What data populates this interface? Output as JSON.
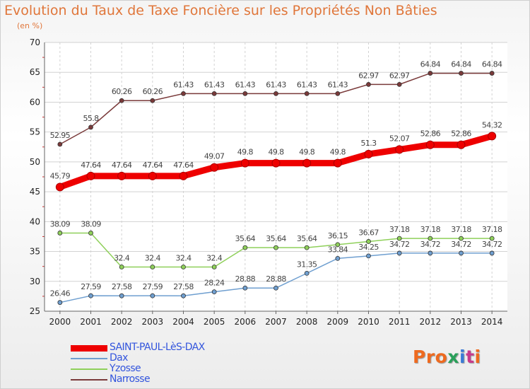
{
  "title": "Evolution du Taux de Taxe Foncière sur les Propriétés Non Bâties",
  "unit": "(en %)",
  "logo": {
    "text": "Proxiti",
    "letter_colors": [
      "#ee6a1f",
      "#ee6a1f",
      "#ee6a1f",
      "#2aa05a",
      "#3a7ad6",
      "#c83a8b",
      "#ee6a1f"
    ]
  },
  "chart_data": {
    "type": "line",
    "title": "Evolution du Taux de Taxe Foncière sur les Propriétés Non Bâties",
    "ylabel": "(en %)",
    "x": [
      "2000",
      "2001",
      "2002",
      "2003",
      "2004",
      "2005",
      "2006",
      "2007",
      "2008",
      "2009",
      "2010",
      "2011",
      "2012",
      "2013",
      "2014"
    ],
    "ylim": [
      25,
      70
    ],
    "yticks": [
      25,
      30,
      35,
      40,
      45,
      50,
      55,
      60,
      65,
      70
    ],
    "grid": true,
    "legend_position": "bottom-left",
    "series": [
      {
        "name": "SAINT-PAUL-LèS-DAX",
        "color": "#ee0000",
        "width": 9,
        "values": [
          45.79,
          47.64,
          47.64,
          47.64,
          47.64,
          49.07,
          49.8,
          49.8,
          49.8,
          49.8,
          51.3,
          52.07,
          52.86,
          52.86,
          54.32
        ],
        "labels": [
          "45.79",
          "47.64",
          "47.64",
          "47.64",
          "47.64",
          "49.07",
          "49.8",
          "49.8",
          "49.8",
          "49.8",
          "51.3",
          "52.07",
          "52.86",
          "52.86",
          "54.32"
        ]
      },
      {
        "name": "Dax",
        "color": "#6f9fd0",
        "width": 1.5,
        "values": [
          26.46,
          27.59,
          27.58,
          27.59,
          27.58,
          28.24,
          28.88,
          28.88,
          31.35,
          33.84,
          34.25,
          34.72,
          34.72,
          34.72,
          34.72
        ],
        "labels": [
          "26.46",
          "27.59",
          "27.58",
          "27.59",
          "27.58",
          "28.24",
          "28.88",
          "28.88",
          "31.35",
          "33.84",
          "34.25",
          "34.72",
          "34.72",
          "34.72",
          "34.72"
        ]
      },
      {
        "name": "Yzosse",
        "color": "#8fd05a",
        "width": 1.5,
        "values": [
          38.09,
          38.09,
          32.4,
          32.4,
          32.4,
          32.4,
          35.64,
          35.64,
          35.64,
          36.15,
          36.67,
          37.18,
          37.18,
          37.18,
          37.18
        ],
        "labels": [
          "38.09",
          "38.09",
          "32.4",
          "32.4",
          "32.4",
          "32.4",
          "35.64",
          "35.64",
          "35.64",
          "36.15",
          "36.67",
          "37.18",
          "37.18",
          "37.18",
          "37.18"
        ]
      },
      {
        "name": "Narrosse",
        "color": "#7a3a3a",
        "width": 1.5,
        "values": [
          52.95,
          55.8,
          60.26,
          60.26,
          61.43,
          61.43,
          61.43,
          61.43,
          61.43,
          61.43,
          62.97,
          62.97,
          64.84,
          64.84,
          64.84
        ],
        "labels": [
          "52.95",
          "55.8",
          "60.26",
          "60.26",
          "61.43",
          "61.43",
          "61.43",
          "61.43",
          "61.43",
          "61.43",
          "62.97",
          "62.97",
          "64.84",
          "64.84",
          "64.84"
        ]
      }
    ]
  }
}
